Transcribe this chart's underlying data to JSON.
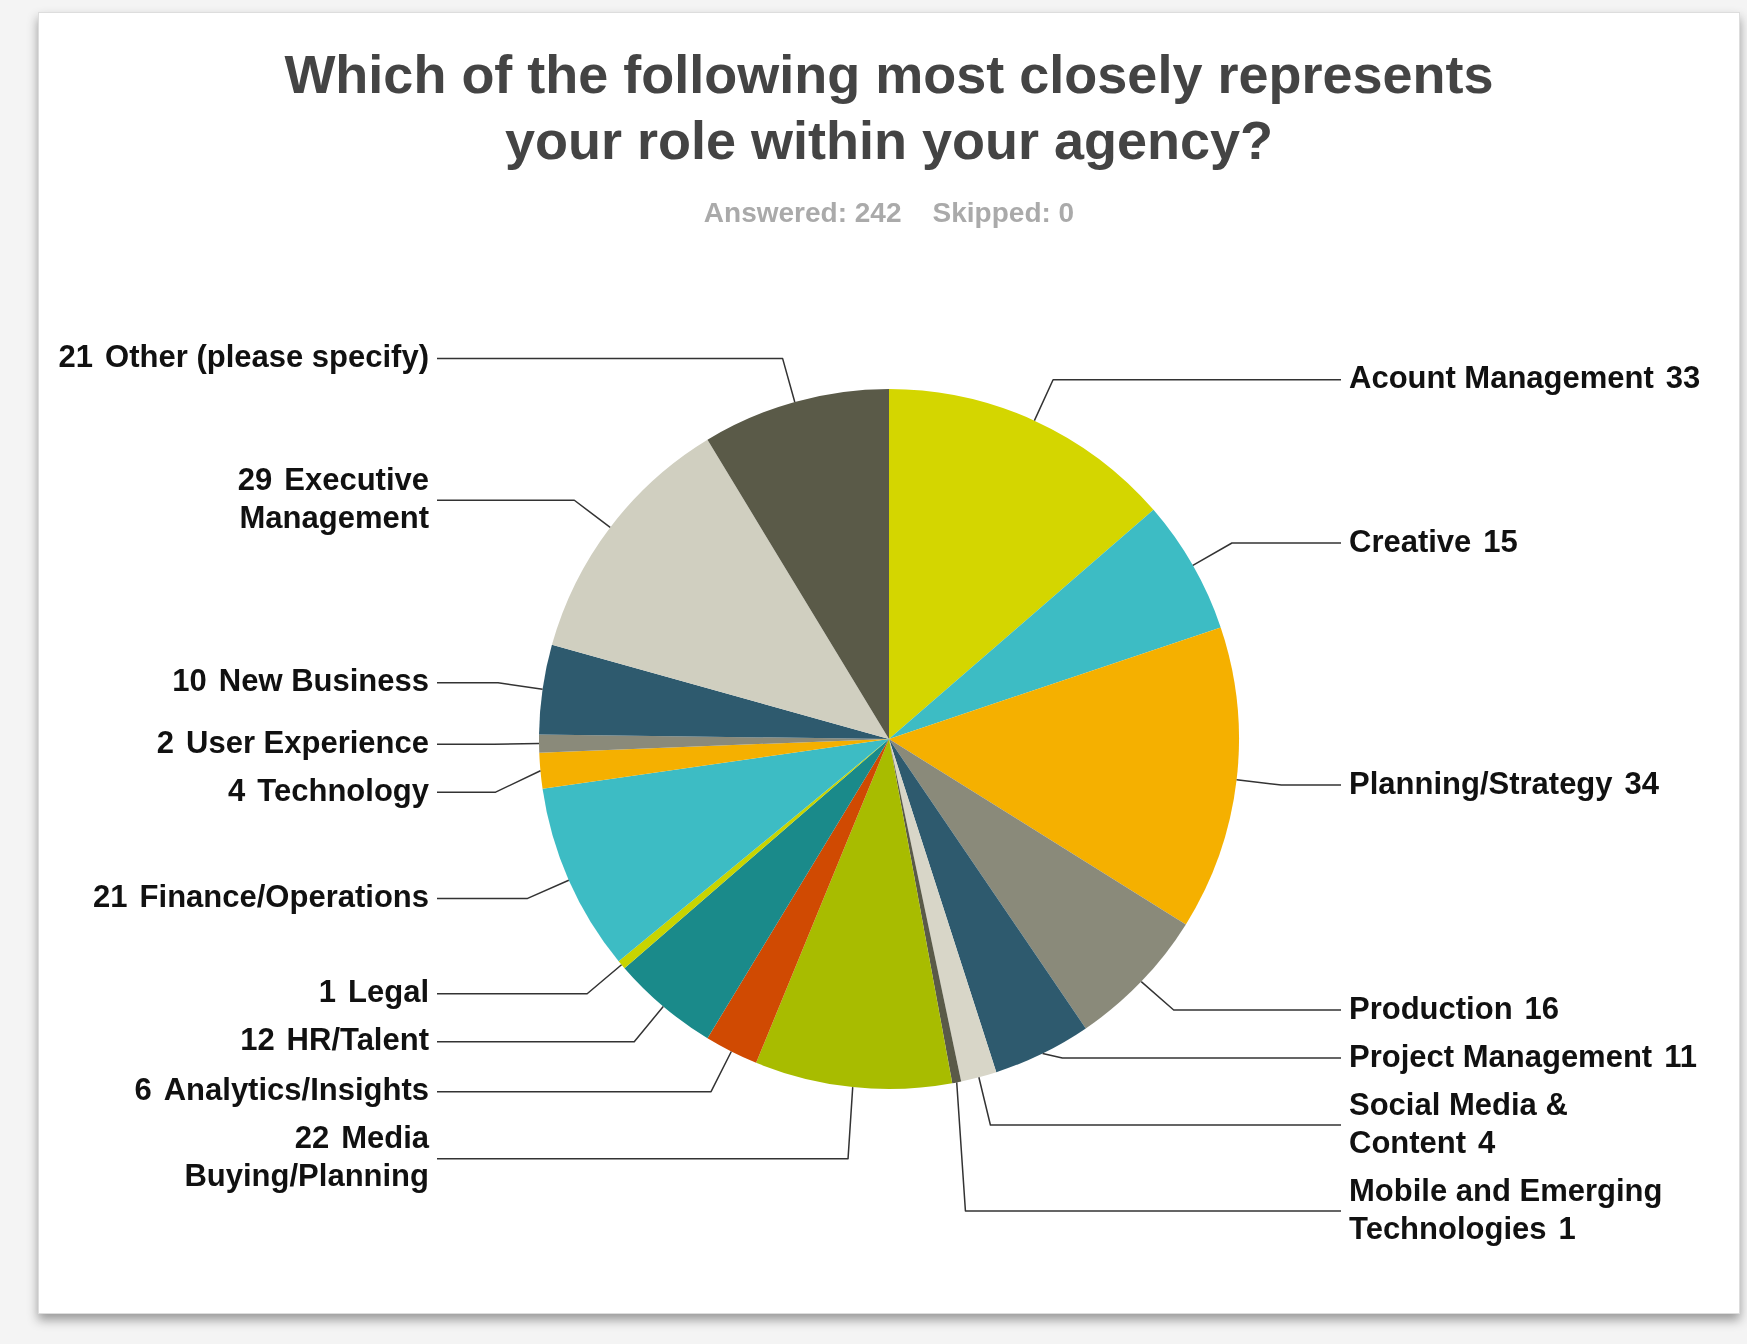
{
  "chart_data": {
    "type": "pie",
    "title": "Which of the following most closely represents your role within your agency?",
    "subtitle": "Answered: 242    Skipped: 0",
    "categories": [
      "Acount Management",
      "Creative",
      "Planning/Strategy",
      "Production",
      "Project Management",
      "Social Media & Content",
      "Mobile and Emerging Technologies",
      "Media Buying/Planning",
      "Analytics/Insights",
      "HR/Talent",
      "Legal",
      "Finance/Operations",
      "Technology",
      "User Experience",
      "New Business",
      "Executive Management",
      "Other (please specify)"
    ],
    "values": [
      33,
      15,
      34,
      16,
      11,
      4,
      1,
      22,
      6,
      12,
      1,
      21,
      4,
      2,
      10,
      29,
      21
    ],
    "colors": [
      "#d4d600",
      "#3dbcc4",
      "#f5b000",
      "#8a8a7a",
      "#2e5a6e",
      "#d8d6c8",
      "#5a5a48",
      "#a8bc00",
      "#d04a02",
      "#1a8a8a",
      "#c8d400",
      "#3dbcc4",
      "#f5b000",
      "#8a8a7a",
      "#2e5a6e",
      "#d0cfc0",
      "#5a5a48"
    ],
    "data_labels": true
  }
}
